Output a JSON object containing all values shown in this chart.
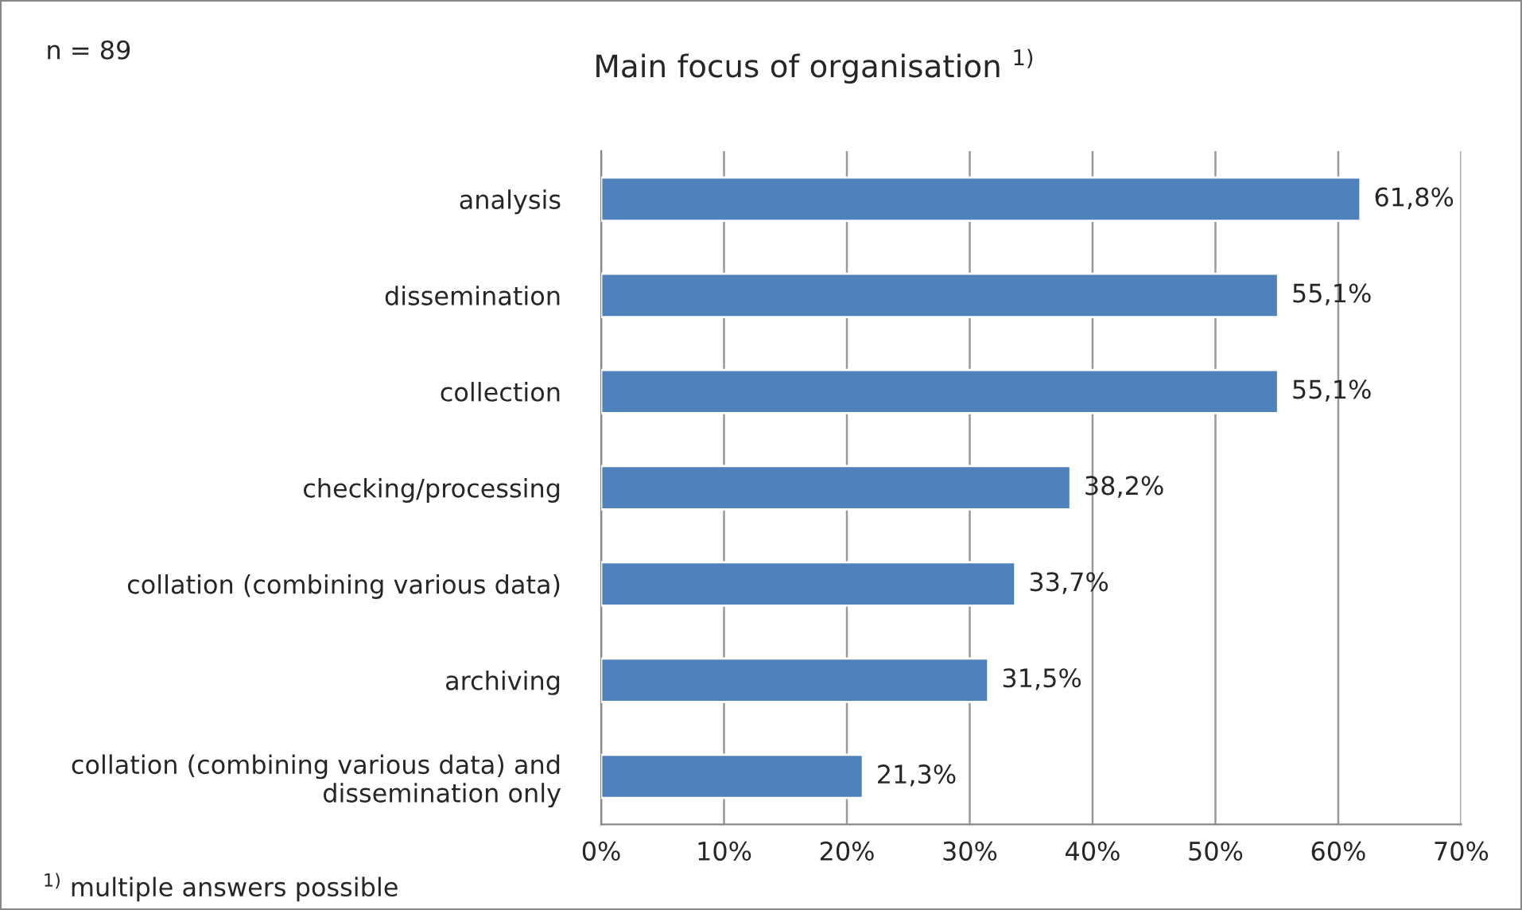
{
  "chart_data": {
    "type": "bar",
    "orientation": "horizontal",
    "title": "Main focus of organisation $^{1)}$",
    "categories": [
      "analysis",
      "dissemination",
      "collection",
      "checking/processing",
      "collation (combining various data)",
      "archiving",
      "collation (combining various data) and\ndissemination only"
    ],
    "values": [
      61.8,
      55.1,
      55.1,
      38.2,
      33.7,
      31.5,
      21.3
    ],
    "value_labels": [
      "61,8%",
      "55,1%",
      "55,1%",
      "38,2%",
      "33,7%",
      "31,5%",
      "21,3%"
    ],
    "color": "#4f81bd",
    "xlim": [
      0,
      70
    ],
    "xticks": [
      {
        "value": 0,
        "label": "0%"
      },
      {
        "value": 10,
        "label": "10%"
      },
      {
        "value": 20,
        "label": "20%"
      },
      {
        "value": 30,
        "label": "30%"
      },
      {
        "value": 40,
        "label": "40%"
      },
      {
        "value": 50,
        "label": "50%"
      },
      {
        "value": 60,
        "label": "60%"
      },
      {
        "value": 70,
        "label": "70%"
      }
    ],
    "grid": "x",
    "legend": false,
    "annotations": [
      "n = 89",
      "$^{1)}$ multiple answers possible"
    ]
  }
}
